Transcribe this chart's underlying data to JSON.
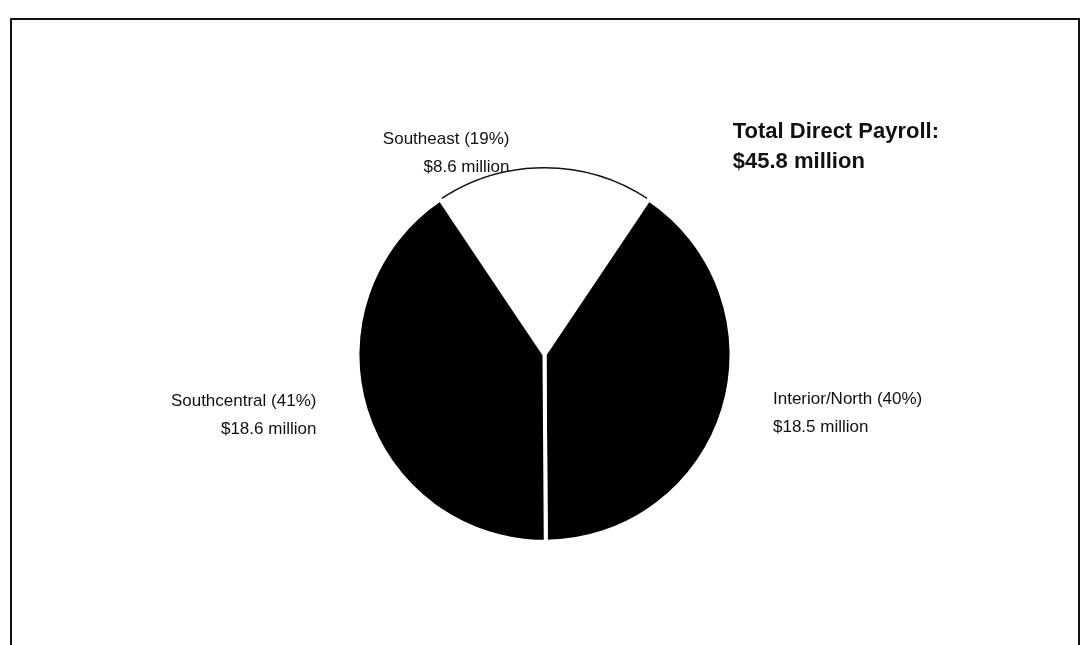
{
  "chart_data": {
    "type": "pie",
    "categories": [
      "Southeast (19%)",
      "Interior/North (40%)",
      "Southcentral (41%)"
    ],
    "values": [
      8.6,
      18.5,
      18.6
    ],
    "value_labels": [
      "$8.6 million",
      "$18.5 million",
      "$18.6 million"
    ],
    "colors": [
      "#ffffff",
      "#000000",
      "#000000"
    ],
    "annotations": [
      "Total Direct Payroll:\n$45.8 million"
    ],
    "legend": false
  }
}
